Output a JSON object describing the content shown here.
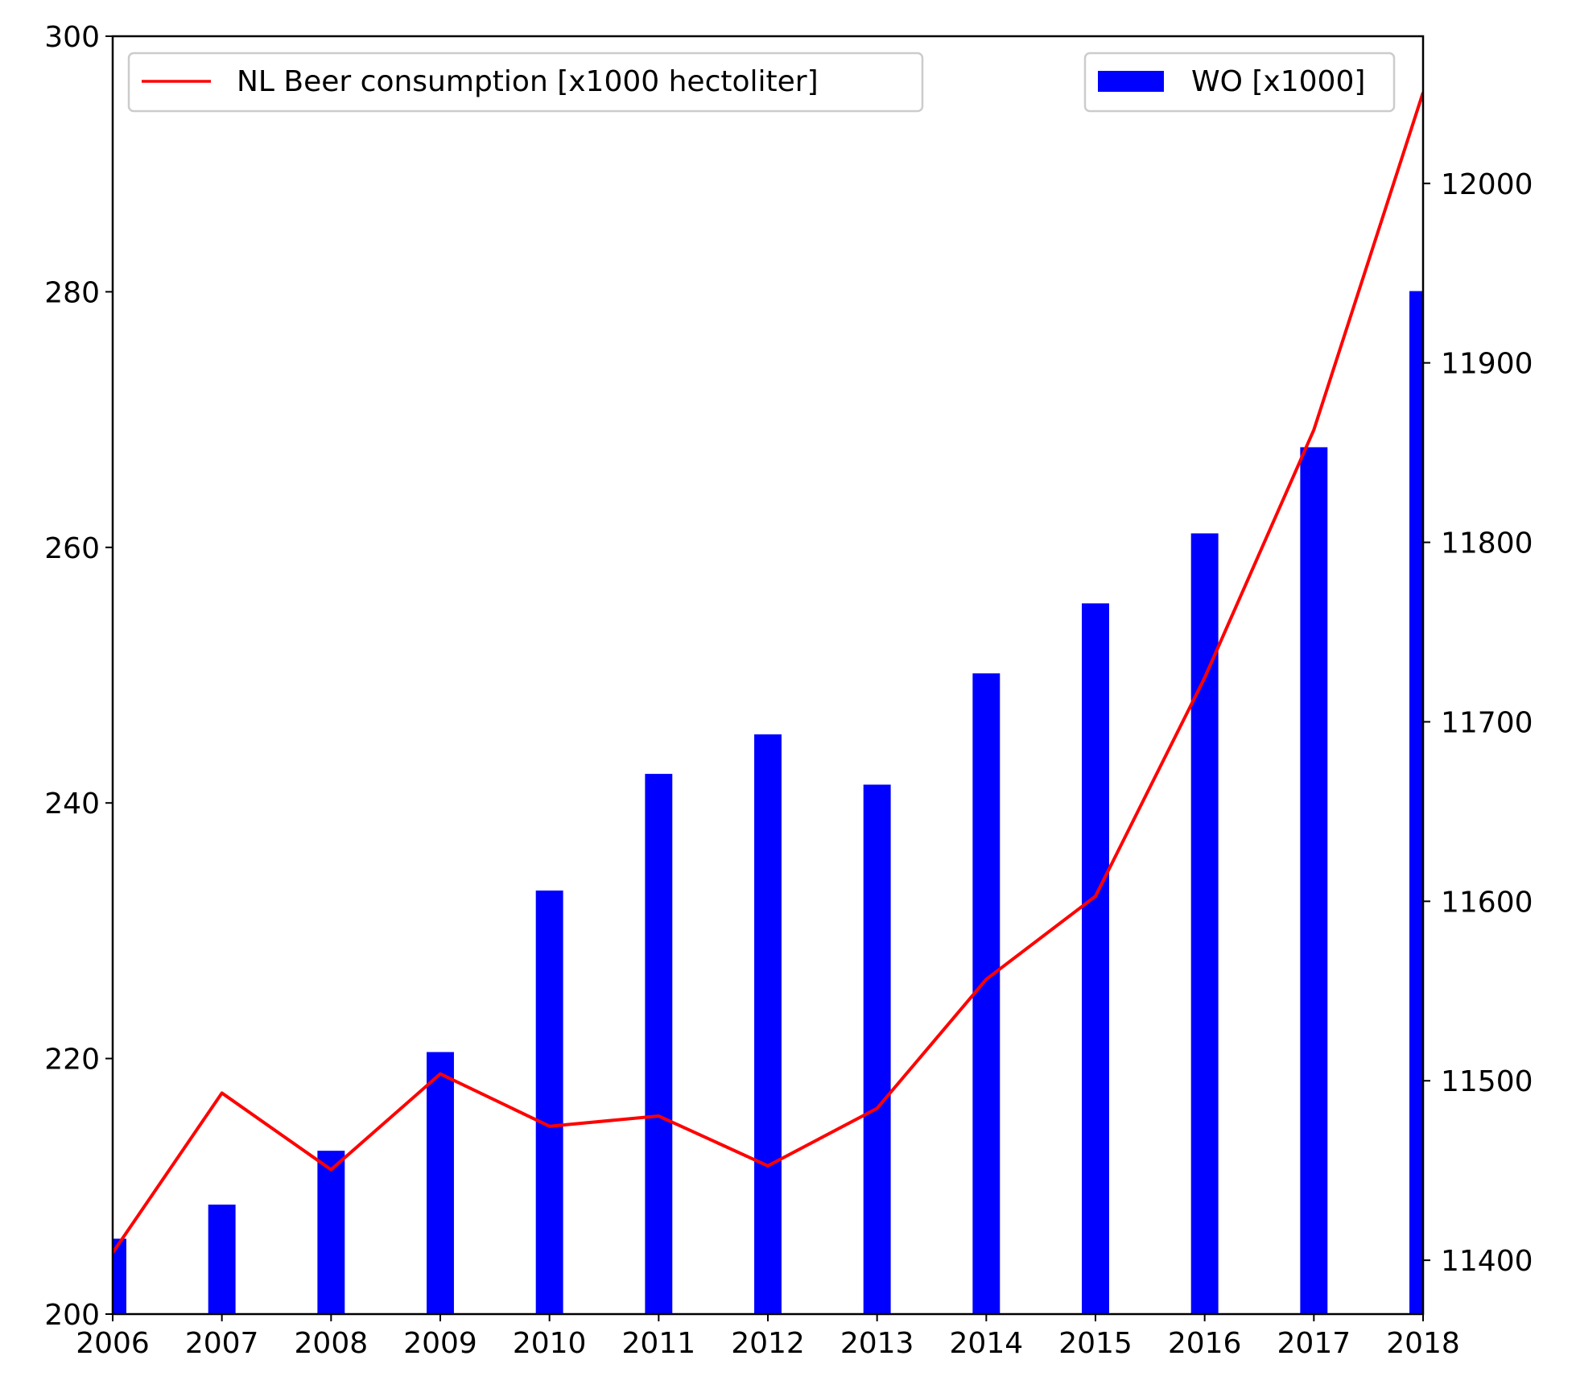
{
  "chart_data": {
    "type": "bar",
    "x": [
      2006,
      2007,
      2008,
      2009,
      2010,
      2011,
      2012,
      2013,
      2014,
      2015,
      2016,
      2017,
      2018
    ],
    "xlim": [
      2006,
      2018
    ],
    "x_ticks": [
      "2006",
      "2007",
      "2008",
      "2009",
      "2010",
      "2011",
      "2012",
      "2013",
      "2014",
      "2015",
      "2016",
      "2017",
      "2018"
    ],
    "ylim_left": [
      200,
      300
    ],
    "y_ticks_left": [
      "200",
      "220",
      "240",
      "260",
      "280",
      "300"
    ],
    "ylim_right": [
      11370,
      12082
    ],
    "y_ticks_right": [
      "11400",
      "11500",
      "11600",
      "11700",
      "11800",
      "11900",
      "12000"
    ],
    "grid": false,
    "series": [
      {
        "name": "NL Beer consumption [x1000 hectoliter]",
        "type": "line",
        "axis": "left",
        "color": "#ff0000",
        "values": [
          204.8,
          217.3,
          211.3,
          218.8,
          214.7,
          215.5,
          211.6,
          216.1,
          226.2,
          232.7,
          249.8,
          269.2,
          295.6
        ]
      },
      {
        "name": "WO [x1000]",
        "type": "bar",
        "axis": "right",
        "color": "#0000ff",
        "values": [
          11412,
          11431,
          11461,
          11516,
          11606,
          11671,
          11693,
          11665,
          11727,
          11766,
          11805,
          11853,
          11940
        ]
      }
    ],
    "legends": [
      {
        "placement": "upper-left",
        "series": 0
      },
      {
        "placement": "upper-right",
        "series": 1
      }
    ]
  }
}
